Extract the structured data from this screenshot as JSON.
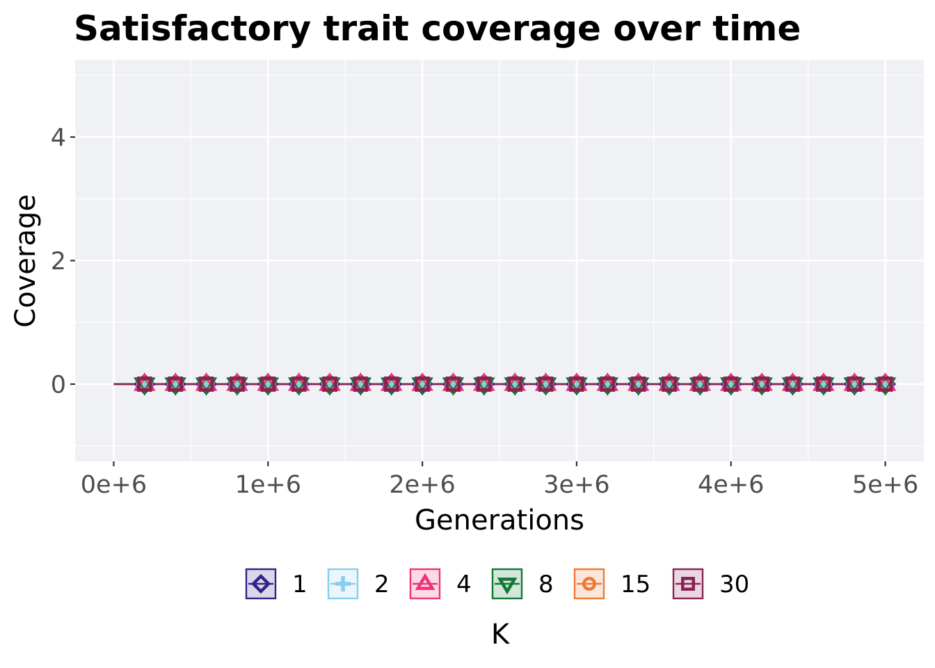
{
  "chart_data": {
    "type": "line",
    "title": "Satisfactory trait coverage over time",
    "xlabel": "Generations",
    "ylabel": "Coverage",
    "x_ticks": [
      "0e+6",
      "1e+6",
      "2e+6",
      "3e+6",
      "4e+6",
      "5e+6"
    ],
    "x_tick_values": [
      0,
      1000000,
      2000000,
      3000000,
      4000000,
      5000000
    ],
    "y_ticks": [
      "0",
      "2",
      "4"
    ],
    "y_tick_values": [
      0,
      2,
      4
    ],
    "xlim": [
      -250000,
      5250000
    ],
    "ylim": [
      -1.25,
      5.25
    ],
    "grid": true,
    "legend": {
      "title": "K",
      "position": "bottom"
    },
    "x": [
      0,
      200000,
      400000,
      600000,
      800000,
      1000000,
      1200000,
      1400000,
      1600000,
      1800000,
      2000000,
      2200000,
      2400000,
      2600000,
      2800000,
      3000000,
      3200000,
      3400000,
      3600000,
      3800000,
      4000000,
      4200000,
      4400000,
      4600000,
      4800000,
      5000000
    ],
    "series": [
      {
        "name": "1",
        "color": "#332288",
        "marker": "diamond",
        "values": [
          0,
          0,
          0,
          0,
          0,
          0,
          0,
          0,
          0,
          0,
          0,
          0,
          0,
          0,
          0,
          0,
          0,
          0,
          0,
          0,
          0,
          0,
          0,
          0,
          0,
          0
        ]
      },
      {
        "name": "2",
        "color": "#88ccee",
        "marker": "plus",
        "values": [
          0,
          0,
          0,
          0,
          0,
          0,
          0,
          0,
          0,
          0,
          0,
          0,
          0,
          0,
          0,
          0,
          0,
          0,
          0,
          0,
          0,
          0,
          0,
          0,
          0,
          0
        ]
      },
      {
        "name": "4",
        "color": "#ee3377",
        "marker": "triangle-up",
        "values": [
          0,
          0,
          0,
          0,
          0,
          0,
          0,
          0,
          0,
          0,
          0,
          0,
          0,
          0,
          0,
          0,
          0,
          0,
          0,
          0,
          0,
          0,
          0,
          0,
          0,
          0
        ]
      },
      {
        "name": "8",
        "color": "#117733",
        "marker": "triangle-down",
        "values": [
          0,
          0,
          0,
          0,
          0,
          0,
          0,
          0,
          0,
          0,
          0,
          0,
          0,
          0,
          0,
          0,
          0,
          0,
          0,
          0,
          0,
          0,
          0,
          0,
          0,
          0
        ]
      },
      {
        "name": "15",
        "color": "#ee7733",
        "marker": "circle",
        "values": [
          0,
          0,
          0,
          0,
          0,
          0,
          0,
          0,
          0,
          0,
          0,
          0,
          0,
          0,
          0,
          0,
          0,
          0,
          0,
          0,
          0,
          0,
          0,
          0,
          0,
          0
        ]
      },
      {
        "name": "30",
        "color": "#882255",
        "marker": "square",
        "values": [
          0,
          0,
          0,
          0,
          0,
          0,
          0,
          0,
          0,
          0,
          0,
          0,
          0,
          0,
          0,
          0,
          0,
          0,
          0,
          0,
          0,
          0,
          0,
          0,
          0,
          0
        ]
      }
    ],
    "panel_bg": "#f0f1f5",
    "grid_color": "#ffffff"
  }
}
